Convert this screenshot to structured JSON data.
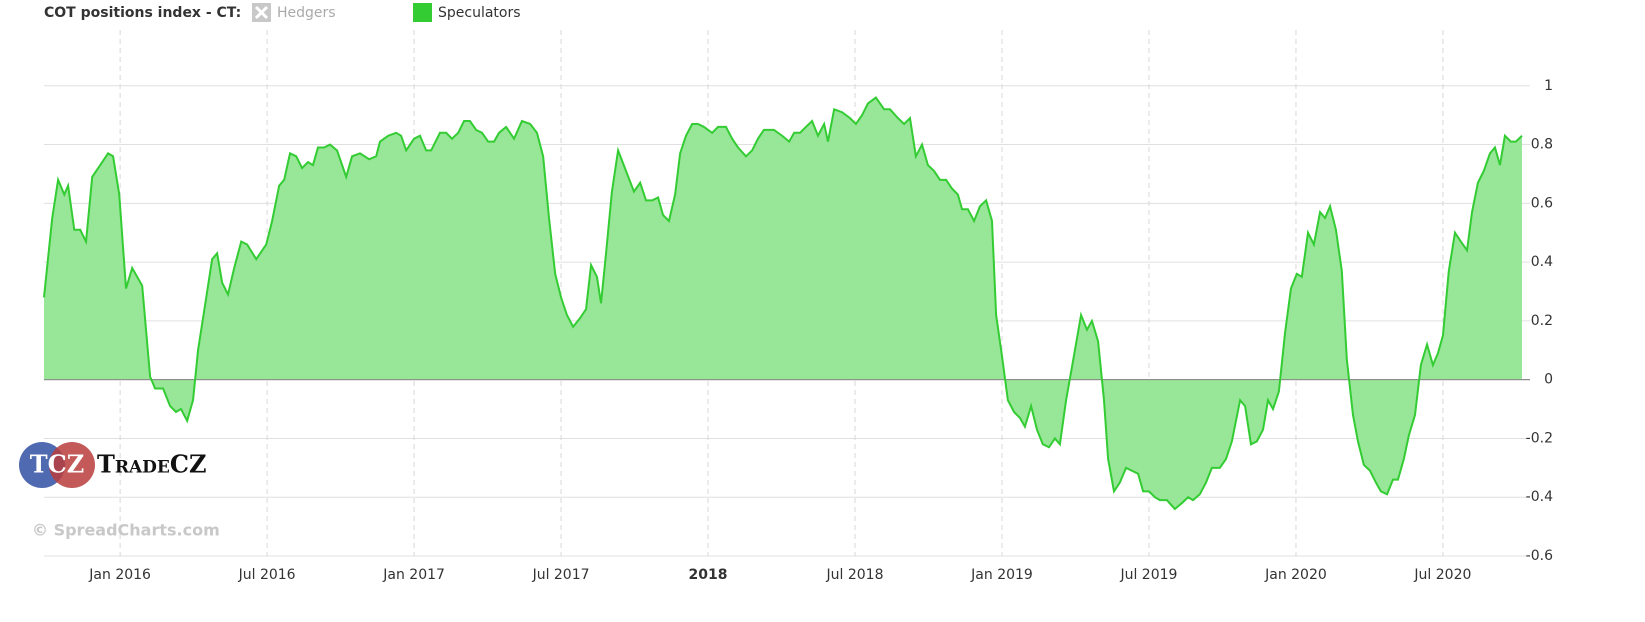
{
  "chart_data": {
    "type": "area",
    "legend_title": "COT positions index - CT:",
    "logo_initials": "TCZ",
    "logo_text": "TradeCZ",
    "credit": "© SpreadCharts.com",
    "xlim": [
      2015.741,
      2020.769
    ],
    "ylim": [
      -0.6,
      1.2
    ],
    "yticks": [
      -0.6,
      -0.4,
      -0.2,
      0,
      0.2,
      0.4,
      0.6,
      0.8,
      1.0
    ],
    "xticks": [
      {
        "value": 2016,
        "label": "Jan 2016"
      },
      {
        "value": 2016.5,
        "label": "Jul 2016"
      },
      {
        "value": 2017,
        "label": "Jan 2017"
      },
      {
        "value": 2017.5,
        "label": "Jul 2017"
      },
      2018,
      {
        "value": 2018.5,
        "label": "Jul 2018"
      },
      {
        "value": 2019,
        "label": "Jan 2019"
      },
      {
        "value": 2019.5,
        "label": "Jul 2019"
      },
      {
        "value": 2020,
        "label": "Jan 2020"
      },
      {
        "value": 2020.5,
        "label": "Jul 2020"
      }
    ],
    "grid": true,
    "x": [
      2015.741,
      2015.769,
      2015.789,
      2015.81,
      2015.823,
      2015.844,
      2015.864,
      2015.884,
      2015.905,
      2015.932,
      2015.959,
      2015.976,
      2015.997,
      2016.02,
      2016.041,
      2016.075,
      2016.102,
      2016.119,
      2016.146,
      2016.17,
      2016.19,
      2016.207,
      2016.228,
      2016.248,
      2016.265,
      2016.293,
      2016.313,
      2016.33,
      2016.347,
      2016.367,
      2016.388,
      2016.412,
      2016.432,
      2016.463,
      2016.497,
      2016.517,
      2016.541,
      2016.558,
      2016.578,
      2016.599,
      2016.619,
      2016.639,
      2016.656,
      2016.673,
      2016.694,
      2016.714,
      2016.738,
      2016.769,
      2016.789,
      2016.816,
      2016.847,
      2016.871,
      2016.884,
      2016.912,
      2016.939,
      2016.956,
      2016.973,
      2017.0,
      2017.02,
      2017.041,
      2017.058,
      2017.088,
      2017.109,
      2017.129,
      2017.15,
      2017.17,
      2017.19,
      2017.211,
      2017.231,
      2017.252,
      2017.272,
      2017.289,
      2017.313,
      2017.34,
      2017.367,
      2017.395,
      2017.418,
      2017.439,
      2017.459,
      2017.48,
      2017.5,
      2017.52,
      2017.541,
      2017.565,
      2017.585,
      2017.602,
      2017.622,
      2017.636,
      2017.653,
      2017.673,
      2017.694,
      2017.721,
      2017.748,
      2017.769,
      2017.789,
      2017.81,
      2017.83,
      2017.847,
      2017.867,
      2017.888,
      2017.905,
      2017.925,
      2017.946,
      2017.966,
      2017.986,
      2018.014,
      2018.034,
      2018.061,
      2018.082,
      2018.102,
      2018.129,
      2018.15,
      2018.17,
      2018.19,
      2018.224,
      2018.252,
      2018.276,
      2018.293,
      2018.313,
      2018.333,
      2018.354,
      2018.374,
      2018.395,
      2018.408,
      2018.429,
      2018.456,
      2018.483,
      2018.503,
      2018.524,
      2018.544,
      2018.571,
      2018.599,
      2018.619,
      2018.646,
      2018.667,
      2018.687,
      2018.707,
      2018.728,
      2018.748,
      2018.769,
      2018.789,
      2018.81,
      2018.83,
      2018.85,
      2018.864,
      2018.884,
      2018.905,
      2018.925,
      2018.946,
      2018.966,
      2018.98,
      2019.0,
      2019.02,
      2019.041,
      2019.061,
      2019.078,
      2019.099,
      2019.119,
      2019.139,
      2019.16,
      2019.18,
      2019.197,
      2019.218,
      2019.241,
      2019.269,
      2019.289,
      2019.306,
      2019.327,
      2019.347,
      2019.361,
      2019.381,
      2019.401,
      2019.422,
      2019.442,
      2019.463,
      2019.48,
      2019.5,
      2019.52,
      2019.537,
      2019.561,
      2019.588,
      2019.612,
      2019.633,
      2019.65,
      2019.673,
      2019.694,
      2019.714,
      2019.741,
      2019.762,
      2019.782,
      2019.81,
      2019.827,
      2019.847,
      2019.867,
      2019.888,
      2019.905,
      2019.922,
      2019.942,
      2019.963,
      2019.983,
      2020.003,
      2020.02,
      2020.041,
      2020.061,
      2020.082,
      2020.099,
      2020.116,
      2020.136,
      2020.156,
      2020.173,
      2020.194,
      2020.211,
      2020.231,
      2020.252,
      2020.272,
      2020.289,
      2020.31,
      2020.33,
      2020.347,
      2020.367,
      2020.384,
      2020.405,
      2020.425,
      2020.446,
      2020.466,
      2020.483,
      2020.5,
      2020.52,
      2020.541,
      2020.561,
      2020.582,
      2020.599,
      2020.619,
      2020.639,
      2020.66,
      2020.677,
      2020.694,
      2020.711,
      2020.731,
      2020.748,
      2020.769
    ],
    "series": [
      {
        "name": "Hedgers",
        "color": "#c8c8c8",
        "visible": false
      },
      {
        "name": "Speculators",
        "color": "#33cc33",
        "fill": "#98e698",
        "visible": true,
        "values": [
          0.28,
          0.55,
          0.68,
          0.63,
          0.66,
          0.51,
          0.51,
          0.47,
          0.69,
          0.73,
          0.77,
          0.76,
          0.63,
          0.31,
          0.38,
          0.32,
          0.01,
          -0.03,
          -0.03,
          -0.09,
          -0.11,
          -0.1,
          -0.14,
          -0.07,
          0.1,
          0.28,
          0.41,
          0.43,
          0.33,
          0.29,
          0.38,
          0.47,
          0.46,
          0.41,
          0.46,
          0.54,
          0.66,
          0.68,
          0.77,
          0.76,
          0.72,
          0.74,
          0.73,
          0.79,
          0.79,
          0.8,
          0.78,
          0.69,
          0.76,
          0.77,
          0.75,
          0.76,
          0.81,
          0.83,
          0.84,
          0.83,
          0.78,
          0.82,
          0.83,
          0.78,
          0.78,
          0.84,
          0.84,
          0.82,
          0.84,
          0.88,
          0.88,
          0.85,
          0.84,
          0.81,
          0.81,
          0.84,
          0.86,
          0.82,
          0.88,
          0.87,
          0.84,
          0.76,
          0.55,
          0.36,
          0.28,
          0.22,
          0.18,
          0.21,
          0.24,
          0.39,
          0.35,
          0.26,
          0.43,
          0.64,
          0.78,
          0.71,
          0.64,
          0.67,
          0.61,
          0.61,
          0.62,
          0.56,
          0.54,
          0.63,
          0.77,
          0.83,
          0.87,
          0.87,
          0.86,
          0.84,
          0.86,
          0.86,
          0.82,
          0.79,
          0.76,
          0.78,
          0.82,
          0.85,
          0.85,
          0.83,
          0.81,
          0.84,
          0.84,
          0.86,
          0.88,
          0.83,
          0.87,
          0.81,
          0.92,
          0.91,
          0.89,
          0.87,
          0.9,
          0.94,
          0.96,
          0.92,
          0.92,
          0.89,
          0.87,
          0.89,
          0.76,
          0.8,
          0.73,
          0.71,
          0.68,
          0.68,
          0.65,
          0.63,
          0.58,
          0.58,
          0.54,
          0.59,
          0.61,
          0.54,
          0.22,
          0.08,
          -0.07,
          -0.11,
          -0.13,
          -0.16,
          -0.09,
          -0.17,
          -0.22,
          -0.23,
          -0.2,
          -0.22,
          -0.07,
          0.06,
          0.22,
          0.17,
          0.2,
          0.13,
          -0.07,
          -0.27,
          -0.38,
          -0.35,
          -0.3,
          -0.31,
          -0.32,
          -0.38,
          -0.38,
          -0.4,
          -0.41,
          -0.41,
          -0.44,
          -0.42,
          -0.4,
          -0.41,
          -0.39,
          -0.35,
          -0.3,
          -0.3,
          -0.27,
          -0.21,
          -0.07,
          -0.09,
          -0.22,
          -0.21,
          -0.17,
          -0.07,
          -0.1,
          -0.04,
          0.16,
          0.31,
          0.36,
          0.35,
          0.5,
          0.46,
          0.57,
          0.55,
          0.59,
          0.51,
          0.37,
          0.07,
          -0.12,
          -0.21,
          -0.29,
          -0.31,
          -0.35,
          -0.38,
          -0.39,
          -0.34,
          -0.34,
          -0.27,
          -0.19,
          -0.12,
          0.05,
          0.12,
          0.05,
          0.09,
          0.15,
          0.37,
          0.5,
          0.47,
          0.44,
          0.57,
          0.67,
          0.71,
          0.77,
          0.79,
          0.73,
          0.83,
          0.81,
          0.81,
          0.83
        ]
      }
    ]
  }
}
